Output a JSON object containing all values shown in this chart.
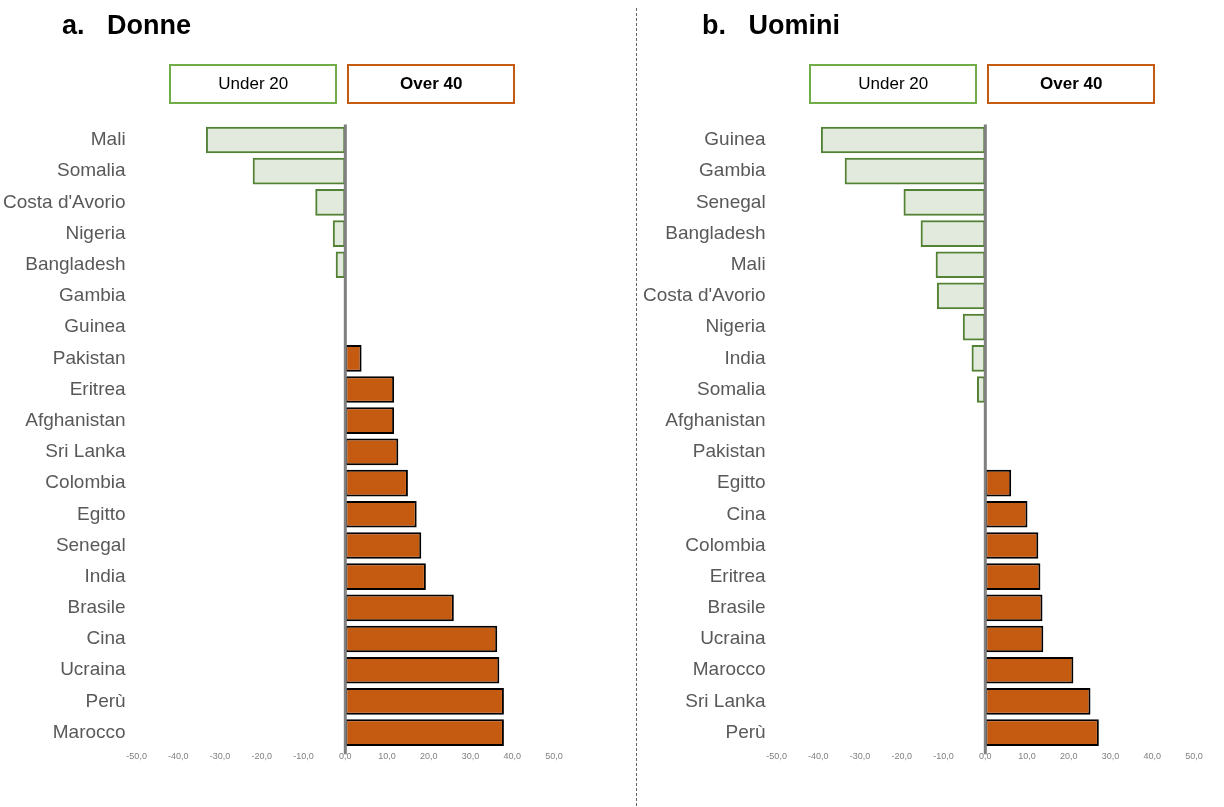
{
  "chart_data": [
    {
      "type": "bar",
      "orientation": "horizontal",
      "stacked": true,
      "title": "a.   Donne",
      "legend": "top",
      "grid": false,
      "categories": [
        "Mali",
        "Somalia",
        "Costa d'Avorio",
        "Nigeria",
        "Bangladesh",
        "Gambia",
        "Guinea",
        "Pakistan",
        "Eritrea",
        "Afghanistan",
        "Sri Lanka",
        "Colombia",
        "Egitto",
        "Senegal",
        "India",
        "Brasile",
        "Cina",
        "Ucraina",
        "Perù",
        "Marocco"
      ],
      "series": [
        {
          "name": "Under 20",
          "color": "#548235",
          "values": [
            -33.4,
            -22.2,
            -7.2,
            -3.0,
            -2.3,
            0,
            0,
            null,
            null,
            null,
            null,
            null,
            null,
            null,
            null,
            null,
            null,
            null,
            null,
            null
          ]
        },
        {
          "name": "Over 40",
          "color": "#c55a11",
          "values": [
            null,
            null,
            null,
            null,
            null,
            null,
            null,
            3.9,
            11.7,
            11.7,
            12.7,
            15.0,
            17.1,
            18.2,
            19.3,
            26.0,
            36.4,
            36.9,
            38.0,
            38.0
          ]
        }
      ],
      "xlim": [
        -50,
        50
      ],
      "ref_lines": [
        {
          "axis": "x",
          "value": 0,
          "color": "#808080"
        }
      ],
      "xticks": [
        {
          "value": -50,
          "label": "-50,0"
        },
        {
          "value": -40,
          "label": "-40,0"
        },
        {
          "value": -30,
          "label": "-30,0"
        },
        {
          "value": -20,
          "label": "-20,0"
        },
        {
          "value": -10,
          "label": "-10,0"
        },
        {
          "value": 0,
          "label": "0,0"
        },
        {
          "value": 10,
          "label": "10,0"
        },
        {
          "value": 20,
          "label": "20,0"
        },
        {
          "value": 30,
          "label": "30,0"
        },
        {
          "value": 40,
          "label": "40,0"
        },
        {
          "value": 50,
          "label": "50,0"
        }
      ]
    },
    {
      "type": "bar",
      "orientation": "horizontal",
      "stacked": true,
      "title": "b.   Uomini",
      "legend": "top",
      "grid": false,
      "categories": [
        "Guinea",
        "Gambia",
        "Senegal",
        "Bangladesh",
        "Mali",
        "Costa d'Avorio",
        "Nigeria",
        "India",
        "Somalia",
        "Afghanistan",
        "Pakistan",
        "Egitto",
        "Cina",
        "Colombia",
        "Eritrea",
        "Brasile",
        "Ucraina",
        "Marocco",
        "Sri Lanka",
        "Perù"
      ],
      "series": [
        {
          "name": "Under 20",
          "color": "#548235",
          "values": [
            -39.4,
            -33.7,
            -19.6,
            -15.5,
            -11.9,
            -11.6,
            -5.4,
            -3.3,
            -2.0,
            0,
            0,
            null,
            null,
            null,
            null,
            null,
            null,
            null,
            null,
            null
          ]
        },
        {
          "name": "Over 40",
          "color": "#c55a11",
          "values": [
            null,
            null,
            null,
            null,
            null,
            null,
            null,
            null,
            null,
            null,
            null,
            6.2,
            10.1,
            12.7,
            13.2,
            13.7,
            13.9,
            21.1,
            25.2,
            27.2
          ]
        }
      ],
      "xlim": [
        -50,
        50
      ],
      "ref_lines": [
        {
          "axis": "x",
          "value": 0,
          "color": "#808080"
        }
      ],
      "xticks": [
        {
          "value": -50,
          "label": "-50,0"
        },
        {
          "value": -40,
          "label": "-40,0"
        },
        {
          "value": -30,
          "label": "-30,0"
        },
        {
          "value": -20,
          "label": "-20,0"
        },
        {
          "value": -10,
          "label": "-10,0"
        },
        {
          "value": 0,
          "label": "0,0"
        },
        {
          "value": 10,
          "label": "10,0"
        },
        {
          "value": 20,
          "label": "20,0"
        },
        {
          "value": 30,
          "label": "30,0"
        },
        {
          "value": 40,
          "label": "40,0"
        },
        {
          "value": 50,
          "label": "50,0"
        }
      ]
    }
  ]
}
